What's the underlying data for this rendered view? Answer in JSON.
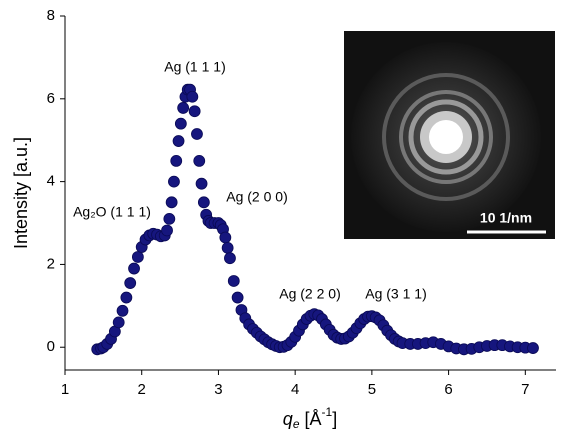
{
  "chart_data": {
    "type": "scatter",
    "ylabel": "Intensity [a.u.]",
    "xlabel_parts": [
      "q",
      "e",
      " [Å",
      "-1",
      "]"
    ],
    "x": [
      1.42,
      1.47,
      1.5,
      1.55,
      1.6,
      1.65,
      1.7,
      1.75,
      1.8,
      1.85,
      1.9,
      1.95,
      2.0,
      2.05,
      2.1,
      2.15,
      2.2,
      2.25,
      2.3,
      2.33,
      2.36,
      2.39,
      2.42,
      2.45,
      2.48,
      2.51,
      2.54,
      2.57,
      2.6,
      2.63,
      2.66,
      2.69,
      2.72,
      2.75,
      2.78,
      2.81,
      2.84,
      2.87,
      2.9,
      2.95,
      3.0,
      3.03,
      3.06,
      3.09,
      3.12,
      3.15,
      3.2,
      3.25,
      3.3,
      3.35,
      3.4,
      3.45,
      3.5,
      3.55,
      3.6,
      3.65,
      3.7,
      3.75,
      3.8,
      3.85,
      3.9,
      3.95,
      4.0,
      4.05,
      4.1,
      4.15,
      4.2,
      4.25,
      4.3,
      4.35,
      4.4,
      4.45,
      4.5,
      4.55,
      4.6,
      4.65,
      4.7,
      4.75,
      4.8,
      4.85,
      4.9,
      4.95,
      5.0,
      5.05,
      5.1,
      5.15,
      5.2,
      5.25,
      5.3,
      5.35,
      5.4,
      5.5,
      5.6,
      5.7,
      5.8,
      5.9,
      6.0,
      6.1,
      6.2,
      6.3,
      6.4,
      6.5,
      6.6,
      6.7,
      6.8,
      6.9,
      7.0,
      7.1
    ],
    "values": [
      -0.05,
      -0.03,
      0.0,
      0.08,
      0.2,
      0.38,
      0.6,
      0.88,
      1.2,
      1.55,
      1.9,
      2.18,
      2.42,
      2.6,
      2.7,
      2.74,
      2.72,
      2.68,
      2.7,
      2.82,
      3.1,
      3.5,
      4.0,
      4.5,
      4.98,
      5.4,
      5.78,
      6.05,
      6.22,
      6.22,
      6.05,
      5.7,
      5.15,
      4.5,
      3.95,
      3.5,
      3.2,
      3.05,
      3.0,
      3.0,
      3.0,
      2.95,
      2.85,
      2.65,
      2.4,
      2.15,
      1.6,
      1.2,
      0.9,
      0.7,
      0.55,
      0.44,
      0.35,
      0.26,
      0.19,
      0.12,
      0.07,
      0.03,
      0.0,
      0.01,
      0.05,
      0.13,
      0.25,
      0.4,
      0.55,
      0.68,
      0.76,
      0.8,
      0.77,
      0.68,
      0.55,
      0.42,
      0.3,
      0.23,
      0.2,
      0.21,
      0.26,
      0.35,
      0.46,
      0.58,
      0.68,
      0.74,
      0.75,
      0.72,
      0.65,
      0.53,
      0.4,
      0.29,
      0.2,
      0.14,
      0.1,
      0.08,
      0.08,
      0.1,
      0.12,
      0.08,
      0.02,
      -0.03,
      -0.05,
      -0.04,
      0.0,
      0.03,
      0.05,
      0.05,
      0.02,
      0.0,
      -0.01,
      -0.02
    ],
    "color": "#16167e",
    "xlim": [
      1,
      7.4
    ],
    "ylim": [
      -0.55,
      8
    ],
    "xticks": [
      1,
      2,
      3,
      4,
      5,
      6,
      7
    ],
    "yticks": [
      0,
      2,
      4,
      6,
      8
    ],
    "annotations": [
      "Ag (1 1 1)",
      "Ag₂O (1 1 1)",
      "Ag (2 0 0)",
      "Ag (2 2 0)",
      "Ag (3 1 1)"
    ],
    "inset_scale_label": "10 1/nm"
  }
}
